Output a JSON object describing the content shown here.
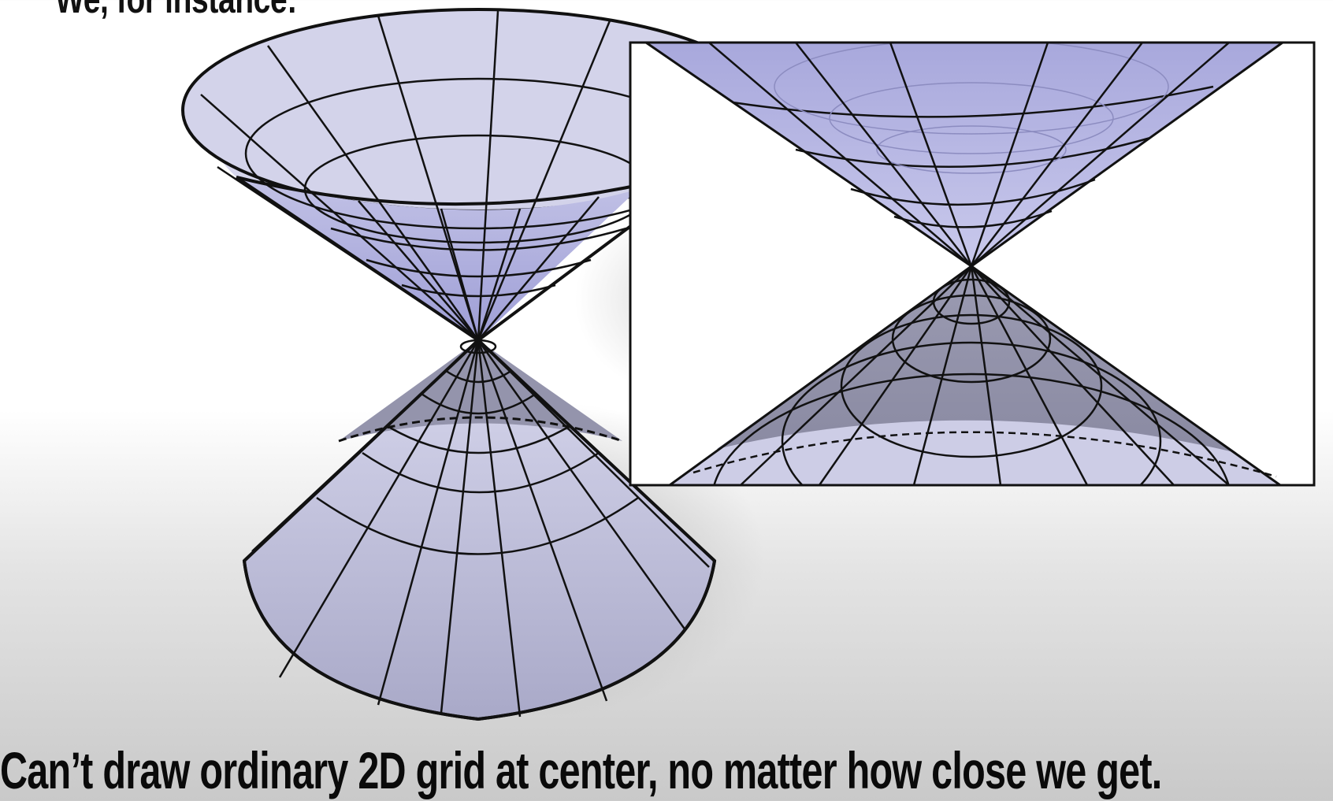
{
  "slide": {
    "top_partial_text": "We, for instance:",
    "caption": "Can’t draw ordinary 2D grid at center, no matter how close we get."
  },
  "colors": {
    "cone_outer": "#d6d6ec",
    "cone_inner": "#a9a9d9",
    "cone_lower_inner": "#8e8ea6",
    "cone_lower_outer": "#c7c7e0",
    "line": "#111111",
    "shadow": "#9a9a9a"
  }
}
